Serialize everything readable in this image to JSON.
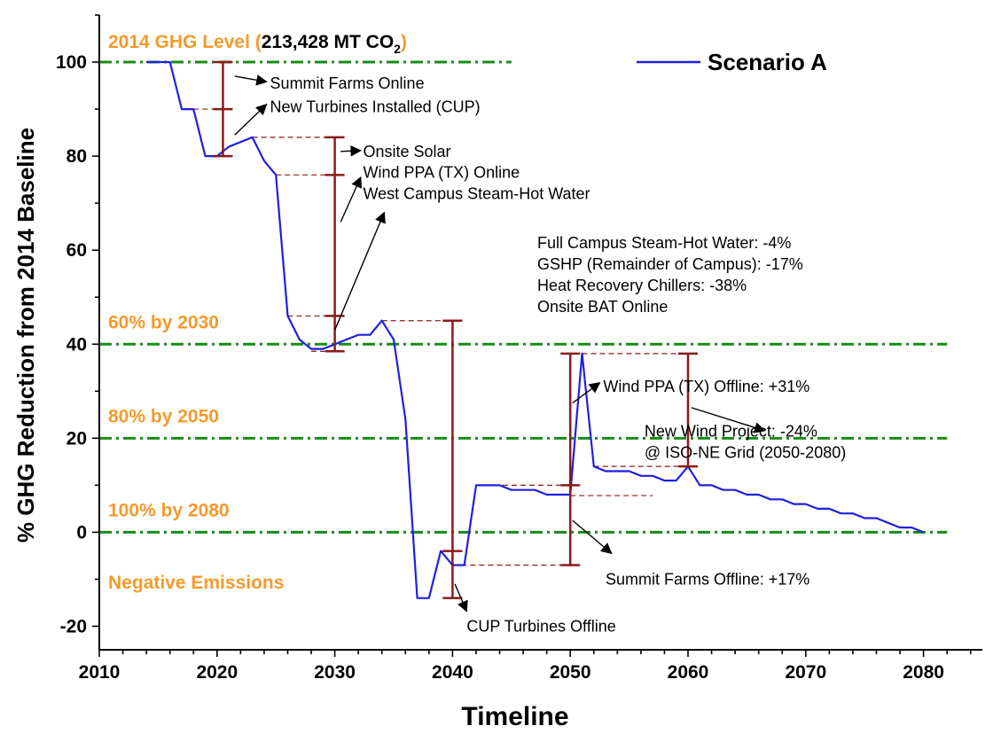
{
  "chart_data": {
    "type": "line",
    "xlabel": "Timeline",
    "ylabel": "% GHG Reduction from 2014 Baseline",
    "xlim": [
      2010,
      2085
    ],
    "ylim": [
      -25,
      110
    ],
    "x_ticks": [
      2010,
      2020,
      2030,
      2040,
      2050,
      2060,
      2070,
      2080
    ],
    "y_ticks": [
      -20,
      0,
      20,
      40,
      60,
      80,
      100
    ],
    "grid": false,
    "legend_position": "top-right",
    "series": [
      {
        "name": "Scenario A",
        "color": "#1f1fe0",
        "points": [
          [
            2014,
            100
          ],
          [
            2016,
            100
          ],
          [
            2017,
            90
          ],
          [
            2018,
            90
          ],
          [
            2019,
            80
          ],
          [
            2020,
            80
          ],
          [
            2021,
            82
          ],
          [
            2022,
            83
          ],
          [
            2023,
            84
          ],
          [
            2024,
            79
          ],
          [
            2025,
            76
          ],
          [
            2026,
            46
          ],
          [
            2027,
            41
          ],
          [
            2028,
            39
          ],
          [
            2029,
            39
          ],
          [
            2030,
            40
          ],
          [
            2031,
            41
          ],
          [
            2032,
            42
          ],
          [
            2033,
            42
          ],
          [
            2034,
            45
          ],
          [
            2035,
            41
          ],
          [
            2036,
            24
          ],
          [
            2037,
            -14
          ],
          [
            2038,
            -14
          ],
          [
            2039,
            -4
          ],
          [
            2040,
            -7
          ],
          [
            2041,
            -7
          ],
          [
            2042,
            10
          ],
          [
            2043,
            10
          ],
          [
            2044,
            10
          ],
          [
            2045,
            9
          ],
          [
            2046,
            9
          ],
          [
            2047,
            9
          ],
          [
            2048,
            8
          ],
          [
            2049,
            8
          ],
          [
            2050,
            8
          ],
          [
            2051,
            38
          ],
          [
            2052,
            14
          ],
          [
            2053,
            13
          ],
          [
            2054,
            13
          ],
          [
            2055,
            13
          ],
          [
            2056,
            12
          ],
          [
            2057,
            12
          ],
          [
            2058,
            11
          ],
          [
            2059,
            11
          ],
          [
            2060,
            14
          ],
          [
            2061,
            10
          ],
          [
            2062,
            10
          ],
          [
            2063,
            9
          ],
          [
            2064,
            9
          ],
          [
            2065,
            8
          ],
          [
            2066,
            8
          ],
          [
            2067,
            7
          ],
          [
            2068,
            7
          ],
          [
            2069,
            6
          ],
          [
            2070,
            6
          ],
          [
            2071,
            5
          ],
          [
            2072,
            5
          ],
          [
            2073,
            4
          ],
          [
            2074,
            4
          ],
          [
            2075,
            3
          ],
          [
            2076,
            3
          ],
          [
            2077,
            2
          ],
          [
            2078,
            1
          ],
          [
            2079,
            1
          ],
          [
            2080,
            0
          ]
        ]
      }
    ],
    "target_lines": [
      {
        "y": 100,
        "x_start": 2010,
        "x_end": 2045,
        "label": "2014 GHG Level (",
        "label_bold": "213,428 MT CO",
        "label_sub": "2",
        "label_close": ")"
      },
      {
        "y": 40,
        "x_start": 2010,
        "x_end": 2082,
        "label": "60% by 2030"
      },
      {
        "y": 20,
        "x_start": 2010,
        "x_end": 2082,
        "label": "80% by 2050"
      },
      {
        "y": 0,
        "x_start": 2010,
        "x_end": 2082,
        "label": "100% by 2080"
      }
    ],
    "region_label": "Negative Emissions",
    "target_color": "#1a8a1a",
    "label_color": "#f59a2b",
    "bracket_color": "#8b1a1a",
    "brackets": [
      {
        "x": 2020.5,
        "y_low": 80,
        "y_high": 100,
        "caps": [
          100,
          90,
          80
        ]
      },
      {
        "x": 2030,
        "y_low": 38.5,
        "y_high": 84,
        "caps": [
          84,
          76,
          46,
          38.5
        ]
      },
      {
        "x": 2040,
        "y_low": -14,
        "y_high": 45,
        "caps": [
          45,
          -4,
          -14
        ]
      },
      {
        "x": 2050,
        "y_low": -7,
        "y_high": 38,
        "caps": [
          38,
          10,
          -7
        ]
      },
      {
        "x": 2060,
        "y_low": 14,
        "y_high": 38,
        "caps": [
          38,
          14
        ]
      }
    ],
    "ref_lines": [
      {
        "y": 90,
        "x_start": 2018,
        "x_end": 2020.5
      },
      {
        "y": 84,
        "x_start": 2023,
        "x_end": 2030
      },
      {
        "y": 76,
        "x_start": 2025,
        "x_end": 2030
      },
      {
        "y": 46,
        "x_start": 2026,
        "x_end": 2030
      },
      {
        "y": 38.5,
        "x_start": 2028,
        "x_end": 2030
      },
      {
        "y": 45,
        "x_start": 2034,
        "x_end": 2040
      },
      {
        "y": -4,
        "x_start": 2039,
        "x_end": 2040
      },
      {
        "y": -7,
        "x_start": 2040,
        "x_end": 2050
      },
      {
        "y": 10,
        "x_start": 2042,
        "x_end": 2050
      },
      {
        "y": 7.8,
        "x_start": 2050,
        "x_end": 2057
      },
      {
        "y": 38,
        "x_start": 2051,
        "x_end": 2060
      },
      {
        "y": 14,
        "x_start": 2052,
        "x_end": 2060
      }
    ],
    "annotations": [
      {
        "id": "summit-online",
        "lines": [
          "Summit Farms Online"
        ],
        "text_x": 2024.5,
        "text_y": 95.5,
        "arrow_from": [
          2021.5,
          97
        ],
        "arrow_to": [
          2024.2,
          95.8
        ]
      },
      {
        "id": "new-turbines",
        "lines": [
          "New Turbines Installed (CUP)"
        ],
        "text_x": 2024.5,
        "text_y": 90.5,
        "arrow_from": [
          2021.5,
          84.5
        ],
        "arrow_to": [
          2024.2,
          91
        ]
      },
      {
        "id": "onsite-solar",
        "lines": [
          "Onsite Solar"
        ],
        "text_x": 2032.4,
        "text_y": 81,
        "arrow_from": [
          2030.5,
          81
        ],
        "arrow_to": [
          2032.2,
          81.2
        ]
      },
      {
        "id": "wind-ppa",
        "lines": [
          "Wind PPA (TX) Online",
          "West Campus Steam-Hot Water"
        ],
        "text_x": 2032.4,
        "text_y": 76.5,
        "arrow_from": [
          2030.5,
          66
        ],
        "arrow_to": [
          2032.2,
          75.5
        ]
      },
      {
        "id": "full-campus",
        "lines": [
          "Full Campus Steam-Hot Water: -4%",
          "GSHP (Remainder of Campus): -17%",
          "Heat Recovery Chillers: -38%",
          "Onsite BAT Online"
        ],
        "text_x": 2047.2,
        "text_y": 61.5,
        "arrow_from": [
          2030,
          43
        ],
        "arrow_to": [
          2034.2,
          68
        ]
      },
      {
        "id": "wind-ppa-offline",
        "lines": [
          "Wind PPA (TX) Offline: +31%"
        ],
        "text_x": 2052.8,
        "text_y": 31,
        "arrow_from": [
          2050.2,
          27.5
        ],
        "arrow_to": [
          2052.5,
          31.8
        ]
      },
      {
        "id": "new-wind",
        "lines": [
          "New Wind Project: -24%",
          "@ ISO-NE Grid (2050-2080)"
        ],
        "text_x": 2056.3,
        "text_y": 21.5,
        "arrow_from": [
          2060.3,
          26.5
        ],
        "arrow_to": [
          2066.5,
          21.6
        ]
      },
      {
        "id": "summit-offline",
        "lines": [
          "Summit Farms Offline: +17%"
        ],
        "text_x": 2053,
        "text_y": -10,
        "arrow_from": [
          2050.2,
          2.5
        ],
        "arrow_to": [
          2053.5,
          -4.5
        ]
      },
      {
        "id": "cup-offline",
        "lines": [
          "CUP Turbines Offline"
        ],
        "text_x": 2041.2,
        "text_y": -20,
        "arrow_from": [
          2040.2,
          -11
        ],
        "arrow_to": [
          2041.2,
          -16.8
        ]
      }
    ]
  }
}
